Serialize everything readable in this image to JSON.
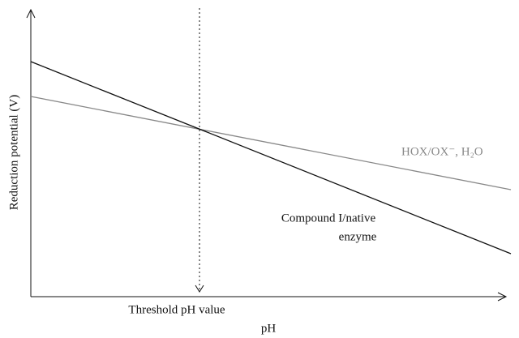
{
  "axes": {
    "y_label": "Reduction potential (V)",
    "x_label": "pH",
    "threshold_label": "Threshold pH value"
  },
  "lines": [
    {
      "label": [
        "HOX/OX⁻, H₂O"
      ]
    },
    {
      "label": [
        "Compound I/native",
        "enzyme"
      ]
    }
  ]
}
